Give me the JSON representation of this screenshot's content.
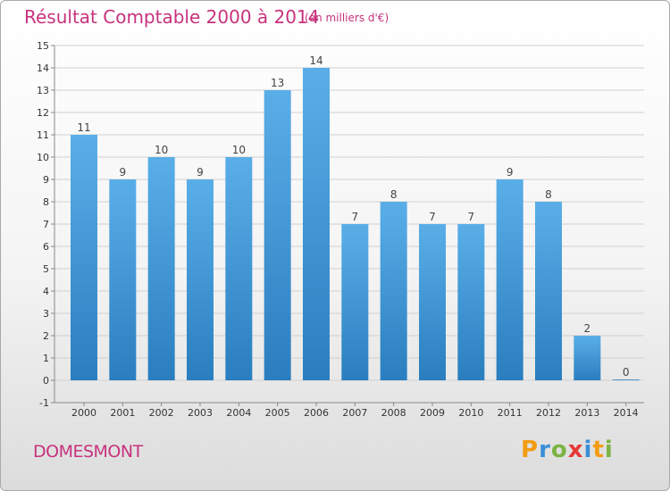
{
  "header": {
    "title": "Résultat Comptable 2000 à 2014",
    "subtitle": "(en milliers d'€)"
  },
  "footer": {
    "place": "DOMESMONT",
    "logo": "Proxiti"
  },
  "colors": {
    "title": "#c8327d",
    "bar_top": "#5aaee8",
    "bar_bottom": "#2a7ebf",
    "grid": "#d0d0d0"
  },
  "chart_data": {
    "type": "bar",
    "title": "Résultat Comptable 2000 à 2014",
    "subtitle": "(en milliers d'€)",
    "categories": [
      "2000",
      "2001",
      "2002",
      "2003",
      "2004",
      "2005",
      "2006",
      "2007",
      "2008",
      "2009",
      "2010",
      "2011",
      "2012",
      "2013",
      "2014"
    ],
    "values": [
      11,
      9,
      10,
      9,
      10,
      13,
      14,
      7,
      8,
      7,
      7,
      9,
      8,
      2,
      0
    ],
    "ylim": [
      -1,
      15
    ],
    "yticks": [
      -1,
      0,
      1,
      2,
      3,
      4,
      5,
      6,
      7,
      8,
      9,
      10,
      11,
      12,
      13,
      14,
      15
    ],
    "grid": true,
    "data_labels": true
  }
}
